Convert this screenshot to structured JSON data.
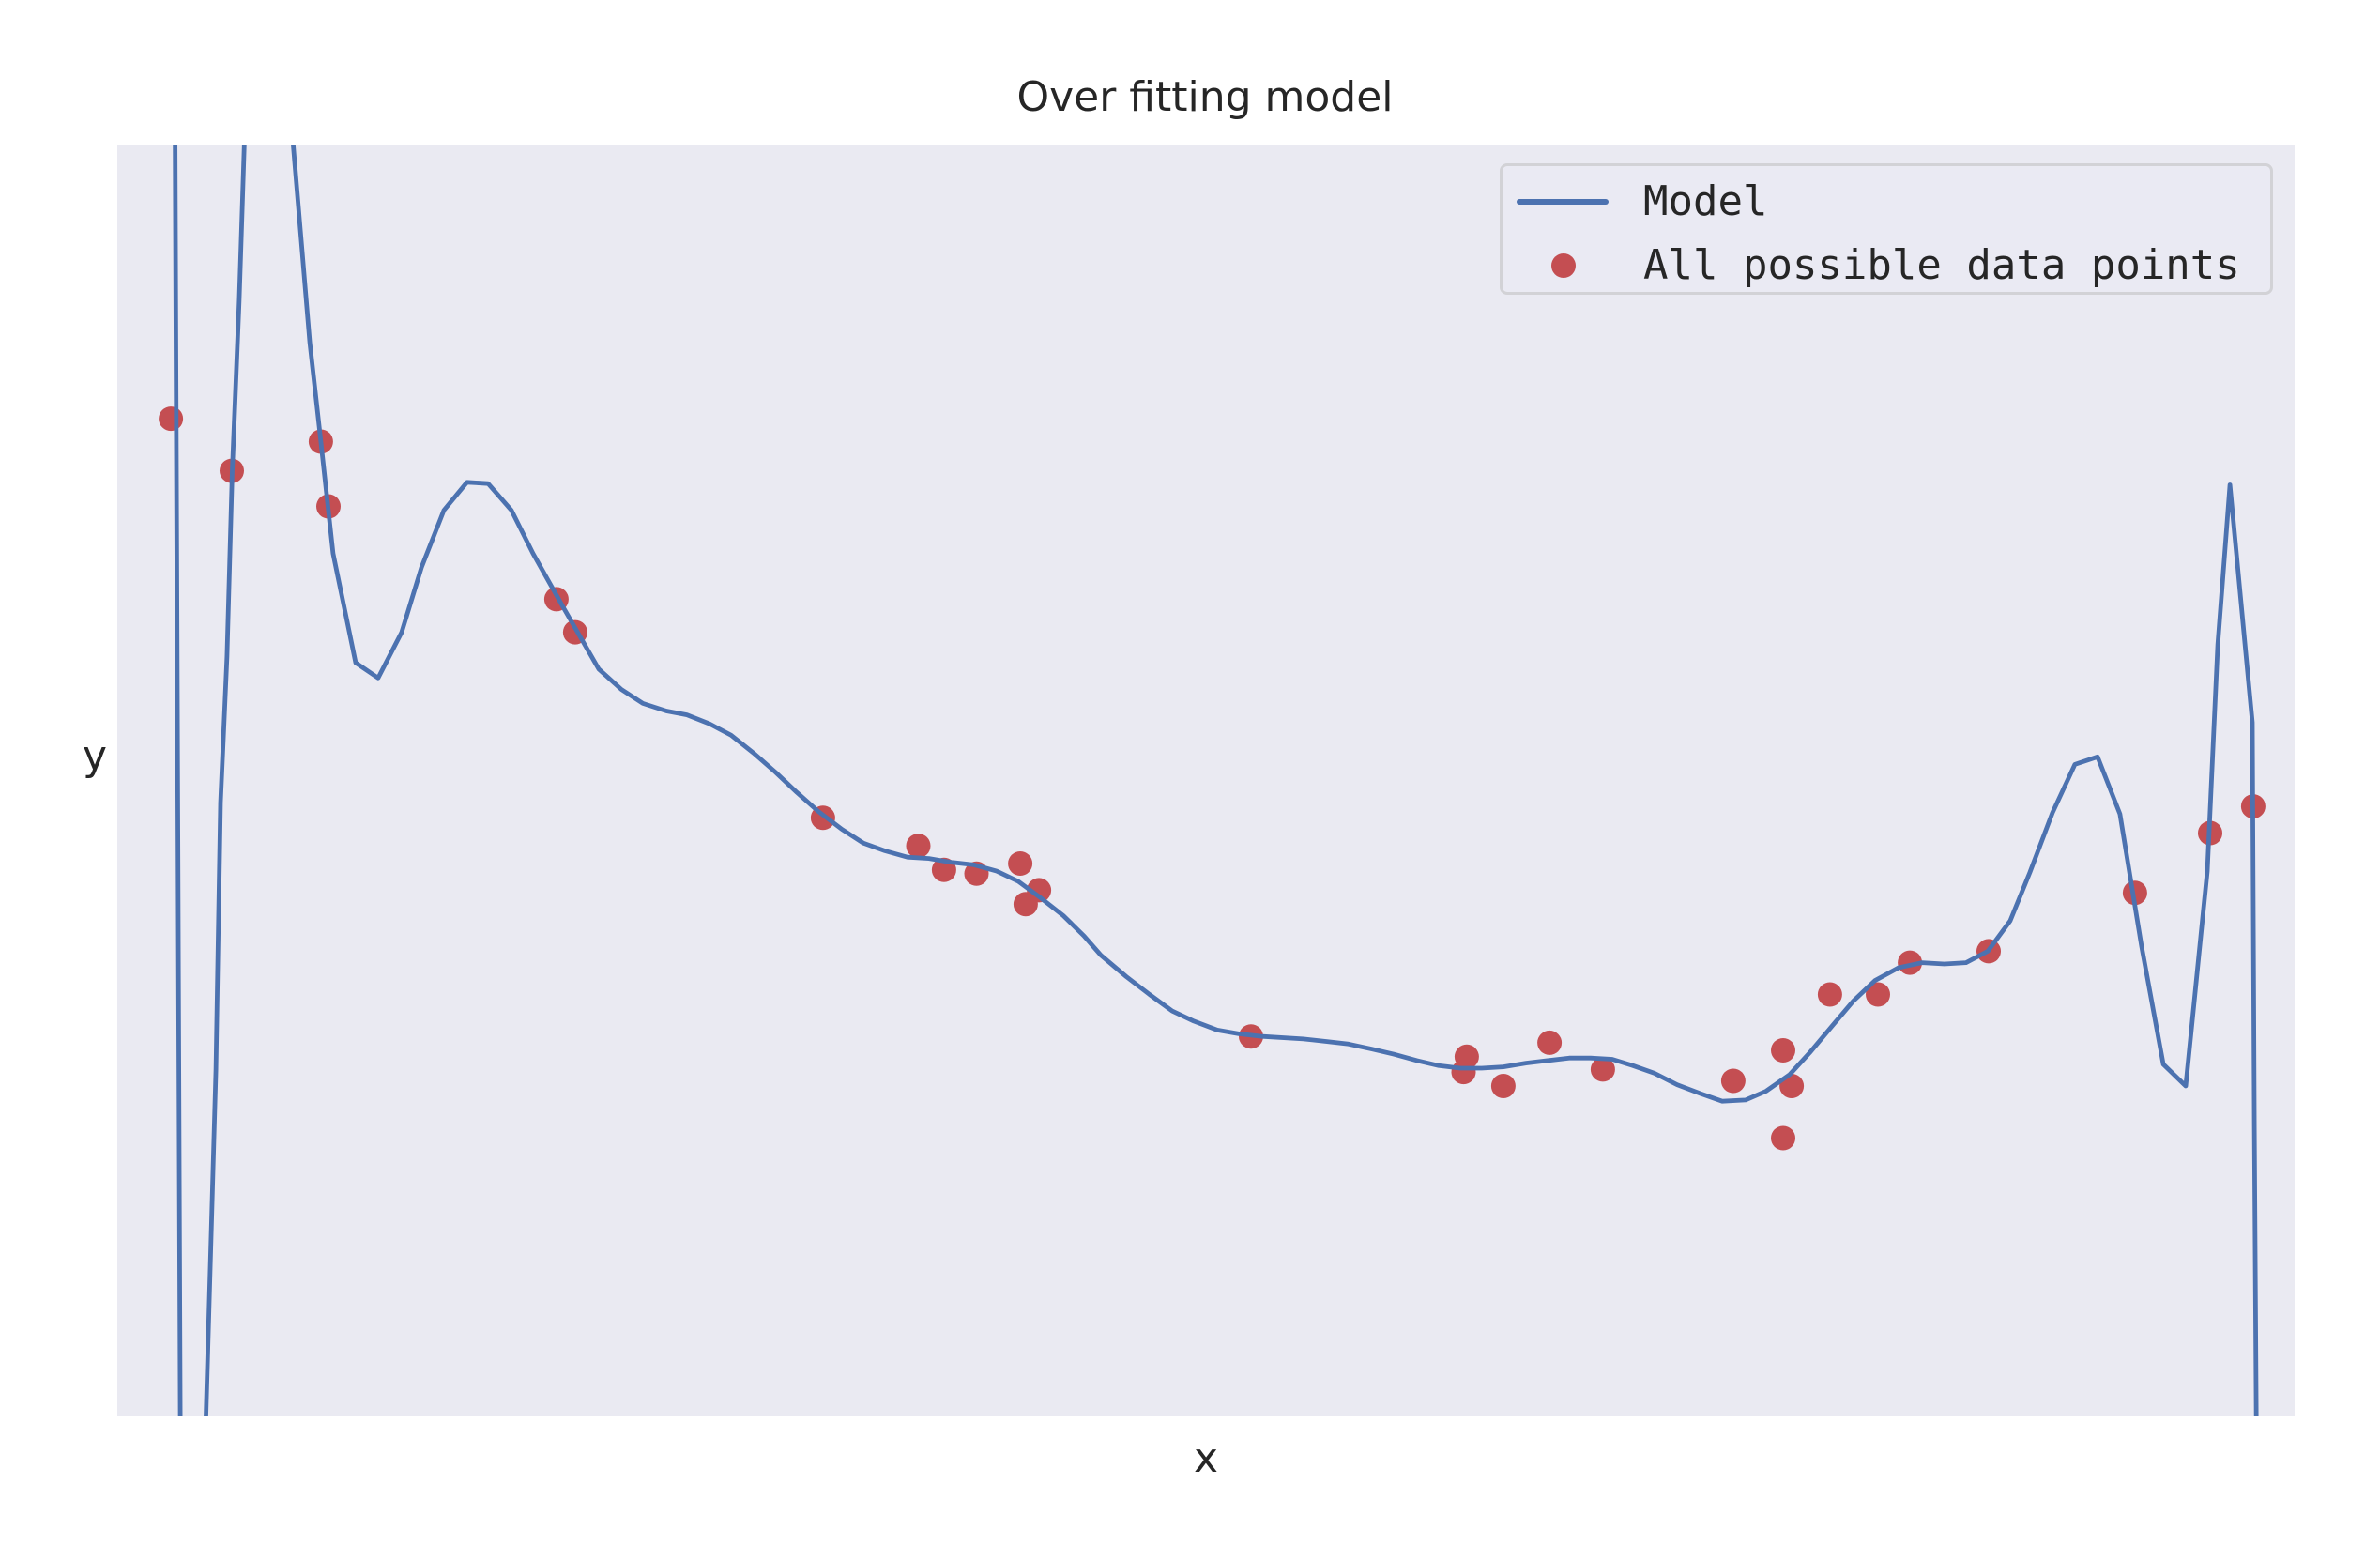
{
  "figure": {
    "title": "Over fitting model",
    "xlabel": "x",
    "ylabel": "y"
  },
  "legend": {
    "items": [
      {
        "label": "Model",
        "kind": "line",
        "color": "#4C72B0"
      },
      {
        "label": "All possible data points",
        "kind": "marker",
        "color": "#C44E52"
      }
    ]
  },
  "colors": {
    "background": "#EAEAF2",
    "model_line": "#4C72B0",
    "data_points": "#C44E52"
  },
  "chart_data": {
    "type": "scatter",
    "title": "Over fitting model",
    "xlabel": "x",
    "ylabel": "y",
    "xlim": [
      0,
      100
    ],
    "ylim": [
      0,
      100
    ],
    "grid": false,
    "ticks": "none",
    "legend_position": "upper right",
    "note": "Axes have no tick labels; coordinates are normalized to the plot area (0-100 on both axes, y increasing upward). Values outside 0-100 are clipped off-plot.",
    "series": [
      {
        "name": "Model",
        "type": "line",
        "color": "#4C72B0",
        "points": [
          [
            2.61,
            118.8
          ],
          [
            2.91,
            -7.5
          ],
          [
            4.01,
            -3.8
          ],
          [
            4.53,
            27.3
          ],
          [
            4.74,
            48.3
          ],
          [
            5.04,
            59.8
          ],
          [
            5.28,
            74.4
          ],
          [
            5.6,
            87.8
          ],
          [
            5.91,
            104.1
          ],
          [
            6.98,
            122.5
          ],
          [
            7.97,
            104.1
          ],
          [
            8.08,
            100.0
          ],
          [
            8.84,
            84.5
          ],
          [
            9.35,
            76.7
          ],
          [
            9.91,
            67.9
          ],
          [
            10.95,
            59.3
          ],
          [
            11.98,
            58.1
          ],
          [
            13.06,
            61.7
          ],
          [
            13.97,
            66.8
          ],
          [
            15.0,
            71.3
          ],
          [
            16.06,
            73.5
          ],
          [
            17.03,
            73.4
          ],
          [
            18.1,
            71.3
          ],
          [
            19.09,
            67.9
          ],
          [
            20.47,
            63.7
          ],
          [
            22.11,
            58.8
          ],
          [
            23.15,
            57.2
          ],
          [
            24.14,
            56.1
          ],
          [
            25.22,
            55.5
          ],
          [
            26.16,
            55.2
          ],
          [
            27.2,
            54.5
          ],
          [
            28.19,
            53.6
          ],
          [
            29.22,
            52.2
          ],
          [
            30.22,
            50.7
          ],
          [
            31.21,
            49.1
          ],
          [
            32.2,
            47.6
          ],
          [
            33.28,
            46.2
          ],
          [
            34.27,
            45.1
          ],
          [
            35.26,
            44.5
          ],
          [
            36.29,
            44.0
          ],
          [
            37.28,
            43.9
          ],
          [
            38.32,
            43.6
          ],
          [
            39.35,
            43.4
          ],
          [
            40.39,
            42.9
          ],
          [
            41.38,
            42.1
          ],
          [
            42.41,
            40.8
          ],
          [
            43.45,
            39.4
          ],
          [
            44.4,
            37.8
          ],
          [
            45.17,
            36.3
          ],
          [
            46.34,
            34.6
          ],
          [
            47.41,
            33.2
          ],
          [
            48.45,
            31.9
          ],
          [
            49.44,
            31.1
          ],
          [
            50.52,
            30.4
          ],
          [
            51.51,
            30.1
          ],
          [
            52.59,
            29.9
          ],
          [
            54.48,
            29.7
          ],
          [
            55.56,
            29.5
          ],
          [
            56.55,
            29.3
          ],
          [
            57.63,
            28.9
          ],
          [
            58.62,
            28.5
          ],
          [
            59.7,
            28.0
          ],
          [
            60.69,
            27.6
          ],
          [
            61.68,
            27.4
          ],
          [
            62.67,
            27.4
          ],
          [
            63.66,
            27.5
          ],
          [
            64.7,
            27.8
          ],
          [
            65.69,
            28.0
          ],
          [
            66.68,
            28.2
          ],
          [
            67.67,
            28.2
          ],
          [
            68.66,
            28.1
          ],
          [
            69.61,
            27.6
          ],
          [
            70.6,
            27.0
          ],
          [
            71.64,
            26.1
          ],
          [
            72.72,
            25.4
          ],
          [
            73.71,
            24.8
          ],
          [
            74.78,
            24.9
          ],
          [
            75.73,
            25.6
          ],
          [
            76.81,
            26.9
          ],
          [
            77.72,
            28.6
          ],
          [
            78.75,
            30.7
          ],
          [
            79.74,
            32.7
          ],
          [
            80.73,
            34.3
          ],
          [
            81.81,
            35.3
          ],
          [
            82.89,
            35.7
          ],
          [
            83.92,
            35.6
          ],
          [
            84.91,
            35.7
          ],
          [
            85.91,
            36.6
          ],
          [
            86.94,
            39.0
          ],
          [
            87.84,
            42.8
          ],
          [
            88.88,
            47.5
          ],
          [
            89.91,
            51.3
          ],
          [
            90.95,
            51.9
          ],
          [
            91.98,
            47.4
          ],
          [
            92.97,
            37.0
          ],
          [
            93.97,
            27.7
          ],
          [
            95.0,
            26.0
          ],
          [
            95.99,
            42.9
          ],
          [
            96.47,
            60.7
          ],
          [
            97.03,
            73.3
          ],
          [
            98.06,
            54.6
          ],
          [
            98.15,
            22.8
          ],
          [
            98.28,
            -10.4
          ]
        ]
      },
      {
        "name": "All possible data points",
        "type": "scatter",
        "color": "#C44E52",
        "points": [
          [
            2.46,
            78.5
          ],
          [
            5.26,
            74.4
          ],
          [
            9.35,
            76.7
          ],
          [
            9.7,
            71.6
          ],
          [
            20.17,
            64.3
          ],
          [
            21.03,
            61.7
          ],
          [
            32.41,
            47.1
          ],
          [
            36.79,
            44.9
          ],
          [
            37.97,
            43.0
          ],
          [
            39.46,
            42.7
          ],
          [
            41.47,
            43.5
          ],
          [
            42.33,
            41.4
          ],
          [
            41.72,
            40.3
          ],
          [
            52.07,
            29.9
          ],
          [
            61.98,
            28.3
          ],
          [
            61.83,
            27.1
          ],
          [
            63.66,
            26.0
          ],
          [
            65.78,
            29.4
          ],
          [
            68.23,
            27.3
          ],
          [
            74.22,
            26.4
          ],
          [
            76.51,
            28.8
          ],
          [
            76.9,
            26.0
          ],
          [
            76.51,
            21.9
          ],
          [
            78.66,
            33.2
          ],
          [
            80.86,
            33.2
          ],
          [
            82.33,
            35.7
          ],
          [
            85.95,
            36.6
          ],
          [
            92.67,
            41.2
          ],
          [
            96.12,
            45.9
          ],
          [
            98.1,
            48.0
          ]
        ]
      }
    ]
  }
}
